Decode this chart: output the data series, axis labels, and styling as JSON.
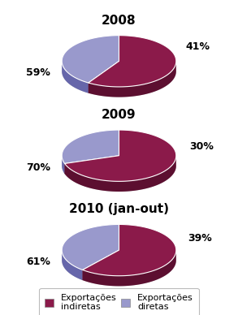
{
  "charts": [
    {
      "title": "2008",
      "values": [
        41,
        59
      ],
      "labels": [
        "41%",
        "59%"
      ],
      "label_angles_deg": [
        25,
        200
      ]
    },
    {
      "title": "2009",
      "values": [
        30,
        70
      ],
      "labels": [
        "30%",
        "70%"
      ],
      "label_angles_deg": [
        15,
        200
      ]
    },
    {
      "title": "2010 (jan-out)",
      "values": [
        39,
        61
      ],
      "labels": [
        "39%",
        "61%"
      ],
      "label_angles_deg": [
        20,
        200
      ]
    }
  ],
  "color_direct": "#9999CC",
  "color_direct_dark": "#6666AA",
  "color_indirect": "#8B1A4A",
  "color_indirect_dark": "#5C0F30",
  "background": "#FFFFFF",
  "legend_indirect": "Exportações\nindiretas",
  "legend_direct": "Exportações\ndiretas",
  "title_fontsize": 11,
  "label_fontsize": 9,
  "legend_fontsize": 8,
  "startangle": 90
}
